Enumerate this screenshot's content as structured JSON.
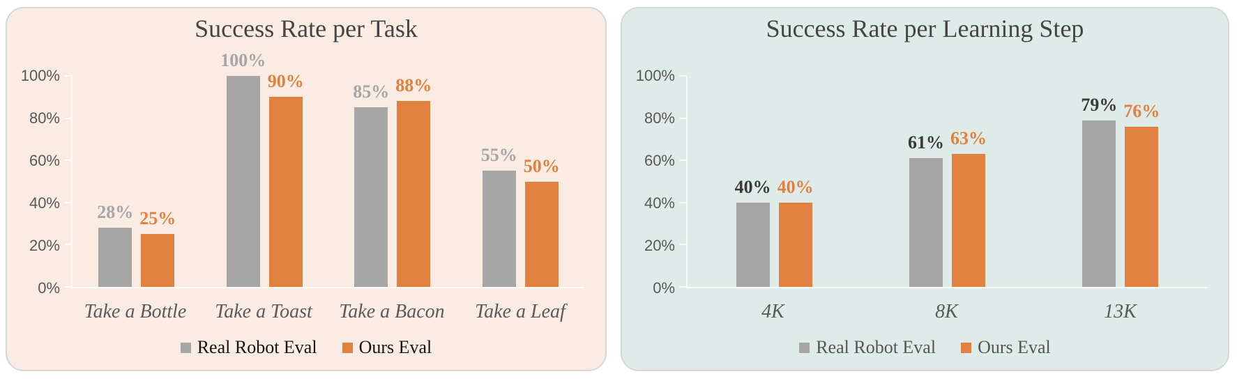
{
  "page": {
    "background": "#FFFFFF",
    "panel_border_color": "#D7D7D7"
  },
  "chart_data": [
    {
      "type": "bar",
      "title": "Success Rate per Task",
      "categories": [
        "Take a Bottle",
        "Take a Toast",
        "Take a Bacon",
        "Take a Leaf"
      ],
      "series": [
        {
          "name": "Real Robot Eval",
          "values": [
            28,
            100,
            85,
            55
          ],
          "color": "#A6A6A6",
          "label_color": "#A6A6A6"
        },
        {
          "name": "Ours Eval",
          "values": [
            25,
            90,
            88,
            50
          ],
          "color": "#E0813F",
          "label_color": "#E0813F"
        }
      ],
      "xlabel": "",
      "ylabel": "",
      "ylim": [
        0,
        100
      ],
      "y_ticks": [
        "100%",
        "80%",
        "60%",
        "40%",
        "20%",
        "0%"
      ],
      "grid": false,
      "data_labels": true,
      "legend_position": "bottom",
      "panel_background": "#FAEBE3",
      "title_color": "#454545",
      "axis_label_color": "#595959",
      "legend_text_color": "#141414"
    },
    {
      "type": "bar",
      "title": "Success Rate per Learning Step",
      "categories": [
        "4K",
        "8K",
        "13K"
      ],
      "series": [
        {
          "name": "Real Robot Eval",
          "values": [
            40,
            61,
            79
          ],
          "color": "#A6A6A6",
          "label_color": "#3A3A3A"
        },
        {
          "name": "Ours Eval",
          "values": [
            40,
            63,
            76
          ],
          "color": "#E0813F",
          "label_color": "#E0813F"
        }
      ],
      "xlabel": "",
      "ylabel": "",
      "ylim": [
        0,
        100
      ],
      "y_ticks": [
        "100%",
        "80%",
        "60%",
        "40%",
        "20%",
        "0%"
      ],
      "grid": false,
      "data_labels": true,
      "legend_position": "bottom",
      "panel_background": "#DFEBE9",
      "title_color": "#454545",
      "axis_label_color": "#595959",
      "legend_text_color": "#555555"
    }
  ]
}
